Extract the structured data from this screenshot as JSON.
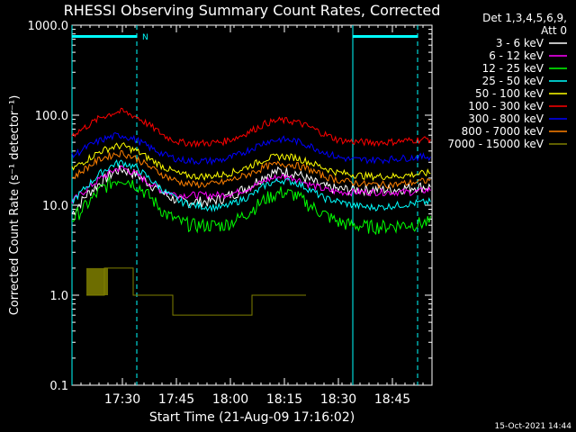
{
  "chart_data": {
    "type": "line",
    "title": "RHESSI Observing Summary Count Rates, Corrected",
    "xlabel": "Start Time (21-Aug-09 17:16:02)",
    "ylabel": "Corrected Count Rate (s⁻¹ detector⁻¹)",
    "y_scale": "log",
    "ylim": [
      0.1,
      1000.0
    ],
    "xlim_minutes": [
      0,
      100
    ],
    "x_ticks": [
      {
        "label": "17:30",
        "minutes": 14
      },
      {
        "label": "17:45",
        "minutes": 29
      },
      {
        "label": "18:00",
        "minutes": 44
      },
      {
        "label": "18:15",
        "minutes": 59
      },
      {
        "label": "18:30",
        "minutes": 74
      },
      {
        "label": "18:45",
        "minutes": 89
      }
    ],
    "y_ticks": [
      {
        "label": "1000.0",
        "value": 1000
      },
      {
        "label": "100.0",
        "value": 100
      },
      {
        "label": "10.0",
        "value": 10
      },
      {
        "label": "1.0",
        "value": 1
      },
      {
        "label": "0.1",
        "value": 0.1
      }
    ],
    "legend_header": [
      "Det 1,3,4,5,6,9,",
      "Att 0"
    ],
    "legend_placement": "right",
    "series": [
      {
        "name": "3 - 6 keV",
        "color": "#ffffff",
        "x": [
          0,
          4,
          8,
          12,
          14,
          18,
          22,
          26,
          30,
          34,
          38,
          42,
          46,
          50,
          54,
          58,
          62,
          66,
          70,
          74,
          78,
          82,
          86,
          90,
          95,
          100
        ],
        "values": [
          8,
          13,
          18,
          24,
          25,
          22,
          17,
          13,
          11,
          11,
          11,
          12,
          14,
          17,
          22,
          24,
          23,
          19,
          16,
          15,
          15,
          15,
          15,
          15,
          16,
          16
        ]
      },
      {
        "name": "6 - 12 keV",
        "color": "#ff00ff",
        "x": [
          0,
          4,
          8,
          12,
          14,
          18,
          22,
          26,
          30,
          34,
          38,
          42,
          46,
          50,
          54,
          58,
          62,
          66,
          70,
          74,
          78,
          82,
          86,
          90,
          95,
          100
        ],
        "values": [
          11,
          15,
          20,
          25,
          26,
          22,
          17,
          14,
          13,
          13,
          13,
          13,
          14,
          16,
          19,
          21,
          20,
          17,
          15,
          14,
          14,
          14,
          14,
          14,
          14,
          15
        ]
      },
      {
        "name": "12 - 25 keV",
        "color": "#00ff00",
        "x": [
          0,
          4,
          8,
          12,
          14,
          18,
          22,
          26,
          30,
          34,
          38,
          42,
          46,
          50,
          54,
          58,
          62,
          66,
          70,
          74,
          78,
          82,
          86,
          90,
          95,
          100
        ],
        "values": [
          7,
          10,
          15,
          19,
          20,
          17,
          12,
          8,
          6.5,
          6,
          6,
          6,
          7,
          9,
          12,
          14,
          13,
          10,
          8,
          6.5,
          6,
          5.8,
          5.8,
          6,
          6.2,
          6.5
        ]
      },
      {
        "name": "25 - 50 keV",
        "color": "#00ffff",
        "x": [
          0,
          4,
          8,
          12,
          14,
          18,
          22,
          26,
          30,
          34,
          38,
          42,
          46,
          50,
          54,
          58,
          62,
          66,
          70,
          74,
          78,
          82,
          86,
          90,
          95,
          100
        ],
        "values": [
          11,
          16,
          23,
          29,
          30,
          26,
          19,
          14,
          11,
          10,
          9.5,
          9.5,
          11,
          13,
          17,
          19,
          18,
          15,
          12,
          11,
          10,
          9.5,
          9.5,
          10,
          10.5,
          11
        ]
      },
      {
        "name": "50 - 100 keV",
        "color": "#ffff00",
        "x": [
          0,
          4,
          8,
          12,
          14,
          18,
          22,
          26,
          30,
          34,
          38,
          42,
          46,
          50,
          54,
          58,
          62,
          66,
          70,
          74,
          78,
          82,
          86,
          90,
          95,
          100
        ],
        "values": [
          25,
          32,
          40,
          45,
          46,
          40,
          32,
          26,
          22,
          21,
          21,
          22,
          24,
          28,
          33,
          35,
          34,
          30,
          26,
          23,
          22,
          21,
          21,
          21,
          22,
          23
        ]
      },
      {
        "name": "100 - 300 keV",
        "color": "#ff0000",
        "x": [
          0,
          4,
          8,
          12,
          14,
          18,
          22,
          26,
          30,
          34,
          38,
          42,
          46,
          50,
          54,
          58,
          62,
          66,
          70,
          74,
          78,
          82,
          86,
          90,
          95,
          100
        ],
        "values": [
          60,
          75,
          95,
          108,
          110,
          96,
          75,
          58,
          50,
          49,
          49,
          51,
          57,
          68,
          82,
          88,
          85,
          74,
          62,
          53,
          51,
          50,
          50,
          51,
          53,
          55
        ]
      },
      {
        "name": "300 - 800 keV",
        "color": "#0000ff",
        "x": [
          0,
          4,
          8,
          12,
          14,
          18,
          22,
          26,
          30,
          34,
          38,
          42,
          46,
          50,
          54,
          58,
          62,
          66,
          70,
          74,
          78,
          82,
          86,
          90,
          95,
          100
        ],
        "values": [
          35,
          44,
          53,
          59,
          60,
          53,
          43,
          36,
          32,
          31,
          31,
          32,
          36,
          43,
          51,
          54,
          52,
          46,
          39,
          34,
          32,
          32,
          32,
          33,
          34,
          35
        ]
      },
      {
        "name": "800 - 7000 keV",
        "color": "#ff8000",
        "x": [
          0,
          4,
          8,
          12,
          14,
          18,
          22,
          26,
          30,
          34,
          38,
          42,
          46,
          50,
          54,
          58,
          62,
          66,
          70,
          74,
          78,
          82,
          86,
          90,
          95,
          100
        ],
        "values": [
          20,
          26,
          33,
          37,
          38,
          33,
          26,
          21,
          18,
          17,
          17,
          18,
          20,
          23,
          27,
          29,
          28,
          25,
          21,
          19,
          18,
          17,
          17,
          17,
          18,
          19
        ]
      },
      {
        "name": "7000 - 15000 keV",
        "color": "#808000",
        "x": [
          4,
          8,
          9,
          10,
          16,
          17,
          28,
          50,
          60,
          65
        ],
        "values": [
          1,
          1,
          2,
          2,
          2,
          1,
          0.6,
          1,
          1,
          1
        ]
      }
    ],
    "annotations": [
      {
        "text": "N",
        "x_minutes": 18
      }
    ],
    "night_markers_minutes": [
      0,
      18,
      78,
      96
    ],
    "footer_stamp": "15-Oct-2021 14:44"
  }
}
